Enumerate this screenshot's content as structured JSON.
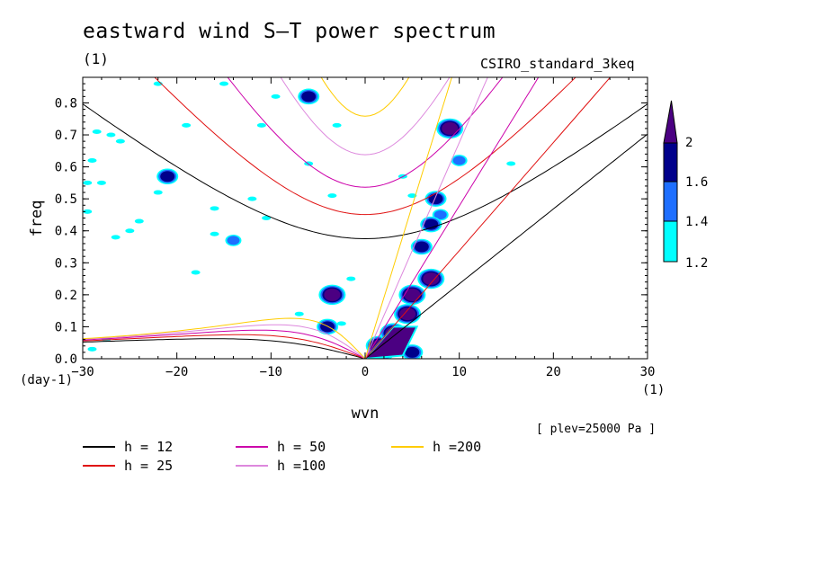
{
  "title": "eastward wind S–T power spectrum",
  "unit_top": "(1)",
  "model": "CSIRO_standard_3keq",
  "plev": "[ plev=25000 Pa ]",
  "x_unit": "(1)",
  "y_unit": "(day-1)",
  "colorbar": {
    "levels": [
      "2",
      "1.6",
      "1.4",
      "1.2"
    ],
    "colors": [
      "#4b0082",
      "#00008b",
      "#1e6fff",
      "#00ffff"
    ]
  },
  "legend": [
    {
      "label": "h = 12",
      "color": "#000000"
    },
    {
      "label": "h = 25",
      "color": "#e01010"
    },
    {
      "label": "h = 50",
      "color": "#cc00aa"
    },
    {
      "label": "h =100",
      "color": "#dd88dd"
    },
    {
      "label": "h =200",
      "color": "#ffcc00"
    }
  ],
  "chart_data": {
    "type": "contour",
    "title": "eastward wind S–T power spectrum",
    "xlabel": "wvn",
    "ylabel": "freq",
    "xlim": [
      -30,
      30
    ],
    "ylim": [
      0,
      0.88
    ],
    "xticks": [
      -30,
      -20,
      -10,
      0,
      10,
      20,
      30
    ],
    "yticks": [
      0.0,
      0.1,
      0.2,
      0.3,
      0.4,
      0.5,
      0.6,
      0.7,
      0.8
    ],
    "contour_levels": [
      1.2,
      1.4,
      1.6,
      2.0
    ],
    "dispersion_curves": [
      {
        "name": "h = 12",
        "color": "#000000",
        "equivalent_depth": 12
      },
      {
        "name": "h = 25",
        "color": "#e01010",
        "equivalent_depth": 25
      },
      {
        "name": "h = 50",
        "color": "#cc00aa",
        "equivalent_depth": 50
      },
      {
        "name": "h =100",
        "color": "#dd88dd",
        "equivalent_depth": 100
      },
      {
        "name": "h =200",
        "color": "#ffcc00",
        "equivalent_depth": 200
      }
    ],
    "blobs": [
      {
        "x": 1.5,
        "y": 0.04,
        "level": 2.0
      },
      {
        "x": 3.0,
        "y": 0.08,
        "level": 2.0
      },
      {
        "x": 4.5,
        "y": 0.14,
        "level": 2.0
      },
      {
        "x": 5.0,
        "y": 0.2,
        "level": 2.0
      },
      {
        "x": 7.0,
        "y": 0.25,
        "level": 2.0
      },
      {
        "x": 9.0,
        "y": 0.72,
        "level": 2.0
      },
      {
        "x": 7.5,
        "y": 0.5,
        "level": 1.6
      },
      {
        "x": 6.0,
        "y": 0.35,
        "level": 1.6
      },
      {
        "x": 8.0,
        "y": 0.45,
        "level": 1.4
      },
      {
        "x": 10.0,
        "y": 0.62,
        "level": 1.4
      },
      {
        "x": 2.0,
        "y": 0.02,
        "level": 1.6
      },
      {
        "x": 5.0,
        "y": 0.02,
        "level": 1.6
      },
      {
        "x": 7.0,
        "y": 0.42,
        "level": 1.6
      },
      {
        "x": -3.5,
        "y": 0.2,
        "level": 2.0
      },
      {
        "x": -4.0,
        "y": 0.1,
        "level": 1.6
      },
      {
        "x": -6.0,
        "y": 0.82,
        "level": 1.6
      },
      {
        "x": -21.0,
        "y": 0.57,
        "level": 1.6
      },
      {
        "x": -14.0,
        "y": 0.37,
        "level": 1.4
      }
    ],
    "speckles": [
      [
        -28.5,
        0.71
      ],
      [
        -27,
        0.7
      ],
      [
        -26,
        0.68
      ],
      [
        -25,
        0.4
      ],
      [
        -26.5,
        0.38
      ],
      [
        -22,
        0.52
      ],
      [
        -29.5,
        0.55
      ],
      [
        -29,
        0.62
      ],
      [
        -16,
        0.47
      ],
      [
        -10.5,
        0.44
      ],
      [
        -12,
        0.5
      ],
      [
        -18,
        0.27
      ],
      [
        -6,
        0.61
      ],
      [
        -1.5,
        0.25
      ],
      [
        -7,
        0.14
      ],
      [
        -2.5,
        0.11
      ],
      [
        -9.5,
        0.82
      ],
      [
        -15,
        0.86
      ],
      [
        -19,
        0.73
      ],
      [
        -28,
        0.55
      ],
      [
        4,
        0.57
      ],
      [
        5,
        0.51
      ],
      [
        -11,
        0.73
      ],
      [
        -3.5,
        0.51
      ],
      [
        15.5,
        0.61
      ],
      [
        -24,
        0.43
      ],
      [
        -29.5,
        0.46
      ],
      [
        -27.5,
        0.06
      ],
      [
        -29,
        0.03
      ],
      [
        -22,
        0.86
      ],
      [
        -16,
        0.39
      ],
      [
        -3,
        0.73
      ]
    ]
  }
}
